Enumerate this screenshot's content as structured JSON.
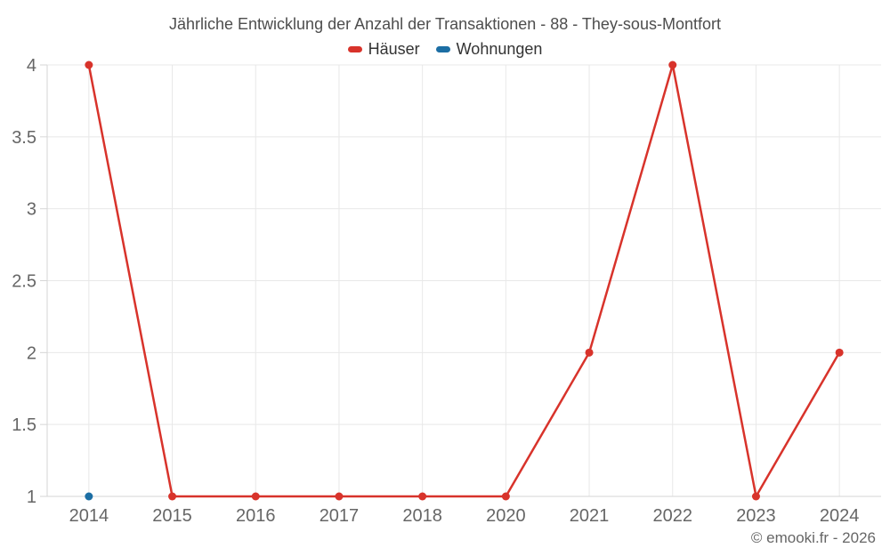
{
  "title": "Jährliche Entwicklung der Anzahl der Transaktionen - 88 - They-sous-Montfort",
  "watermark": "© emooki.fr - 2026",
  "colors": {
    "background": "#ffffff",
    "grid": "#e8e8e8",
    "axis": "#d6d6d6",
    "axis_label": "#666666",
    "title_text": "#4d4d4d",
    "legend_text": "#333333",
    "watermark_text": "#666666",
    "haeuser_red": "#d8332b",
    "wohnungen_blue": "#1c6ea4"
  },
  "chart_data": {
    "type": "line",
    "title": "Jährliche Entwicklung der Anzahl der Transaktionen - 88 - They-sous-Montfort",
    "categories": [
      "2014",
      "2015",
      "2016",
      "2017",
      "2018",
      "2020",
      "2021",
      "2022",
      "2023",
      "2024"
    ],
    "series": [
      {
        "name": "Häuser",
        "color": "#d8332b",
        "values": [
          4,
          1,
          1,
          1,
          1,
          1,
          2,
          4,
          1,
          2
        ]
      },
      {
        "name": "Wohnungen",
        "color": "#1c6ea4",
        "values": [
          1,
          null,
          null,
          null,
          null,
          null,
          null,
          null,
          null,
          null
        ]
      }
    ],
    "xlabel": "",
    "ylabel": "",
    "ylim": [
      1,
      4
    ],
    "yticks": [
      1,
      1.5,
      2,
      2.5,
      3,
      3.5,
      4
    ],
    "grid": true,
    "legend_position": "top"
  }
}
